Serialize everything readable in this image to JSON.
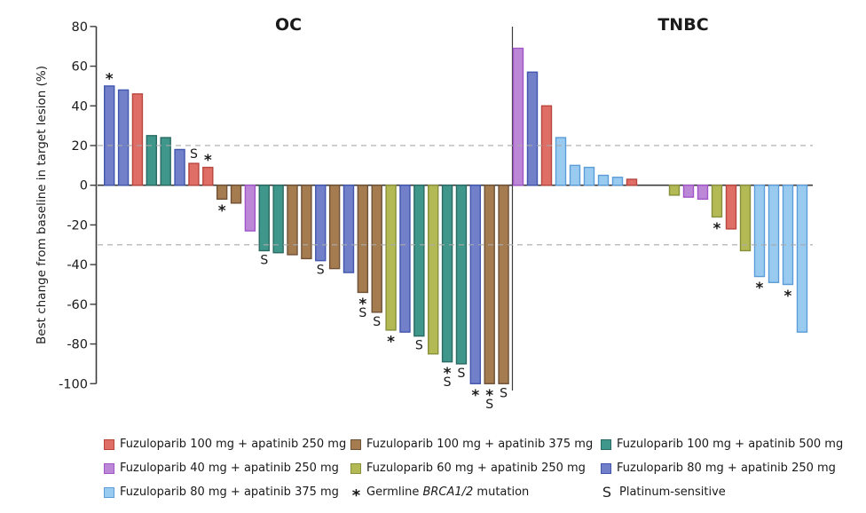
{
  "chart_data": {
    "type": "bar",
    "kind": "waterfall",
    "ylabel": "Best change from baseline in target lesion (%)",
    "ylim": [
      -100,
      80
    ],
    "yticks": [
      80,
      60,
      40,
      20,
      0,
      -20,
      -40,
      -60,
      -80,
      -100
    ],
    "reference_lines_pct": [
      20,
      -30
    ],
    "grid": "dashed reference lines only",
    "legend_position": "bottom",
    "annotation_meanings": {
      "*": "Germline BRCA1/2 mutation",
      "S": "Platinum-sensitive"
    },
    "palette": {
      "fz100_ap250": {
        "fill": "#DE6E66",
        "edge": "#B8463E"
      },
      "fz100_ap375": {
        "fill": "#A57B50",
        "edge": "#6F5136"
      },
      "fz100_ap500": {
        "fill": "#3F968B",
        "edge": "#2A6A62"
      },
      "fz40_ap250": {
        "fill": "#BD87D8",
        "edge": "#A055C8"
      },
      "fz60_ap250": {
        "fill": "#B3B954",
        "edge": "#87903C"
      },
      "fz80_ap250": {
        "fill": "#7180C8",
        "edge": "#4156AE"
      },
      "fz80_ap375": {
        "fill": "#99CBF0",
        "edge": "#5B9CD9"
      }
    },
    "panels": [
      {
        "title": "OC",
        "bars": [
          {
            "value": 50,
            "color": "fz80_ap250",
            "flags": "*"
          },
          {
            "value": 48,
            "color": "fz80_ap250",
            "flags": ""
          },
          {
            "value": 46,
            "color": "fz100_ap250",
            "flags": ""
          },
          {
            "value": 25,
            "color": "fz100_ap500",
            "flags": ""
          },
          {
            "value": 24,
            "color": "fz100_ap500",
            "flags": ""
          },
          {
            "value": 18,
            "color": "fz80_ap250",
            "flags": ""
          },
          {
            "value": 11,
            "color": "fz100_ap250",
            "flags": "S"
          },
          {
            "value": 9,
            "color": "fz100_ap250",
            "flags": "*"
          },
          {
            "value": -7,
            "color": "fz100_ap375",
            "flags": "*"
          },
          {
            "value": -9,
            "color": "fz100_ap375",
            "flags": ""
          },
          {
            "value": -23,
            "color": "fz40_ap250",
            "flags": ""
          },
          {
            "value": -33,
            "color": "fz100_ap500",
            "flags": "S"
          },
          {
            "value": -34,
            "color": "fz100_ap500",
            "flags": ""
          },
          {
            "value": -35,
            "color": "fz100_ap375",
            "flags": ""
          },
          {
            "value": -37,
            "color": "fz100_ap375",
            "flags": ""
          },
          {
            "value": -38,
            "color": "fz80_ap250",
            "flags": "S"
          },
          {
            "value": -42,
            "color": "fz100_ap375",
            "flags": ""
          },
          {
            "value": -44,
            "color": "fz80_ap250",
            "flags": ""
          },
          {
            "value": -54,
            "color": "fz100_ap375",
            "flags": "*S"
          },
          {
            "value": -64,
            "color": "fz100_ap375",
            "flags": "S"
          },
          {
            "value": -73,
            "color": "fz60_ap250",
            "flags": "*"
          },
          {
            "value": -74,
            "color": "fz80_ap250",
            "flags": ""
          },
          {
            "value": -76,
            "color": "fz100_ap500",
            "flags": "S"
          },
          {
            "value": -85,
            "color": "fz60_ap250",
            "flags": ""
          },
          {
            "value": -89,
            "color": "fz100_ap500",
            "flags": "*S"
          },
          {
            "value": -90,
            "color": "fz100_ap500",
            "flags": "S"
          },
          {
            "value": -100,
            "color": "fz80_ap250",
            "flags": "*"
          },
          {
            "value": -100,
            "color": "fz100_ap375",
            "flags": "*S"
          },
          {
            "value": -100,
            "color": "fz100_ap375",
            "flags": "S"
          }
        ]
      },
      {
        "title": "TNBC",
        "bars": [
          {
            "value": 69,
            "color": "fz40_ap250",
            "flags": ""
          },
          {
            "value": 57,
            "color": "fz80_ap250",
            "flags": ""
          },
          {
            "value": 40,
            "color": "fz100_ap250",
            "flags": ""
          },
          {
            "value": 24,
            "color": "fz80_ap375",
            "flags": ""
          },
          {
            "value": 10,
            "color": "fz80_ap375",
            "flags": ""
          },
          {
            "value": 9,
            "color": "fz80_ap375",
            "flags": ""
          },
          {
            "value": 5,
            "color": "fz80_ap375",
            "flags": ""
          },
          {
            "value": 4,
            "color": "fz80_ap375",
            "flags": ""
          },
          {
            "value": 3,
            "color": "fz100_ap250",
            "flags": ""
          },
          {
            "value": -5,
            "color": "fz60_ap250",
            "flags": ""
          },
          {
            "value": -6,
            "color": "fz40_ap250",
            "flags": ""
          },
          {
            "value": -7,
            "color": "fz40_ap250",
            "flags": ""
          },
          {
            "value": -16,
            "color": "fz60_ap250",
            "flags": "*"
          },
          {
            "value": -22,
            "color": "fz100_ap250",
            "flags": ""
          },
          {
            "value": -33,
            "color": "fz60_ap250",
            "flags": ""
          },
          {
            "value": -46,
            "color": "fz80_ap375",
            "flags": "*"
          },
          {
            "value": -49,
            "color": "fz80_ap375",
            "flags": ""
          },
          {
            "value": -50,
            "color": "fz80_ap375",
            "flags": "*"
          },
          {
            "value": -74,
            "color": "fz80_ap375",
            "flags": ""
          }
        ]
      }
    ]
  },
  "legend": {
    "items": [
      {
        "type": "swatch",
        "color": "fz100_ap250",
        "label": "Fuzuloparib 100 mg + apatinib 250 mg"
      },
      {
        "type": "swatch",
        "color": "fz100_ap375",
        "label": "Fuzuloparib 100 mg + apatinib 375 mg"
      },
      {
        "type": "swatch",
        "color": "fz100_ap500",
        "label": "Fuzuloparib 100 mg + apatinib 500 mg"
      },
      {
        "type": "swatch",
        "color": "fz40_ap250",
        "label": "Fuzuloparib 40 mg + apatinib 250 mg"
      },
      {
        "type": "swatch",
        "color": "fz60_ap250",
        "label": "Fuzuloparib 60 mg + apatinib 250 mg"
      },
      {
        "type": "swatch",
        "color": "fz80_ap250",
        "label": "Fuzuloparib 80 mg + apatinib 250 mg"
      },
      {
        "type": "swatch",
        "color": "fz80_ap375",
        "label": "Fuzuloparib 80 mg + apatinib 375 mg"
      },
      {
        "type": "star",
        "glyph": "*",
        "label_prefix": "Germline ",
        "label_italic": "BRCA1/2",
        "label_suffix": " mutation"
      },
      {
        "type": "s",
        "glyph": "S",
        "label": "Platinum-sensitive"
      }
    ]
  }
}
